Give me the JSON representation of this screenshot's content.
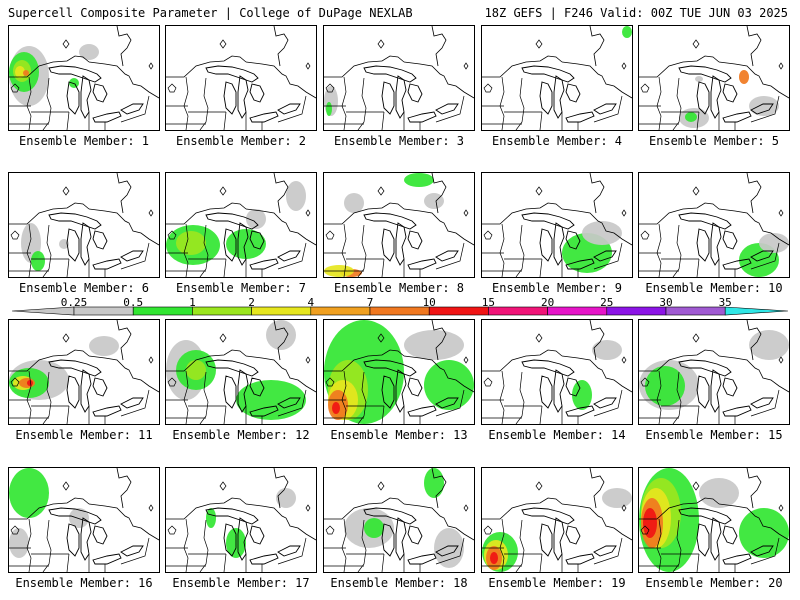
{
  "header": {
    "title": "Supercell Composite Parameter | College of DuPage NEXLAB",
    "run": "18Z GEFS | F246 Valid: 00Z TUE JUN 03 2025"
  },
  "legend": {
    "ticks": [
      "0.25",
      "0.5",
      "1",
      "2",
      "4",
      "7",
      "10",
      "15",
      "20",
      "25",
      "30",
      "35"
    ],
    "colors": [
      "#c8c8c8",
      "#32e632",
      "#9be61e",
      "#e6e61e",
      "#f0a020",
      "#f07820",
      "#f01414",
      "#f01478",
      "#e614c8",
      "#8c14e6",
      "#a05ad2",
      "#30e6e6"
    ]
  },
  "panels": [
    {
      "label": "Ensemble Member: 1"
    },
    {
      "label": "Ensemble Member: 2"
    },
    {
      "label": "Ensemble Member: 3"
    },
    {
      "label": "Ensemble Member: 4"
    },
    {
      "label": "Ensemble Member: 5"
    },
    {
      "label": "Ensemble Member: 6"
    },
    {
      "label": "Ensemble Member: 7"
    },
    {
      "label": "Ensemble Member: 8"
    },
    {
      "label": "Ensemble Member: 9"
    },
    {
      "label": "Ensemble Member: 10"
    },
    {
      "label": "Ensemble Member: 11"
    },
    {
      "label": "Ensemble Member: 12"
    },
    {
      "label": "Ensemble Member: 13"
    },
    {
      "label": "Ensemble Member: 14"
    },
    {
      "label": "Ensemble Member: 15"
    },
    {
      "label": "Ensemble Member: 16"
    },
    {
      "label": "Ensemble Member: 17"
    },
    {
      "label": "Ensemble Member: 18"
    },
    {
      "label": "Ensemble Member: 19"
    },
    {
      "label": "Ensemble Member: 20"
    }
  ]
}
